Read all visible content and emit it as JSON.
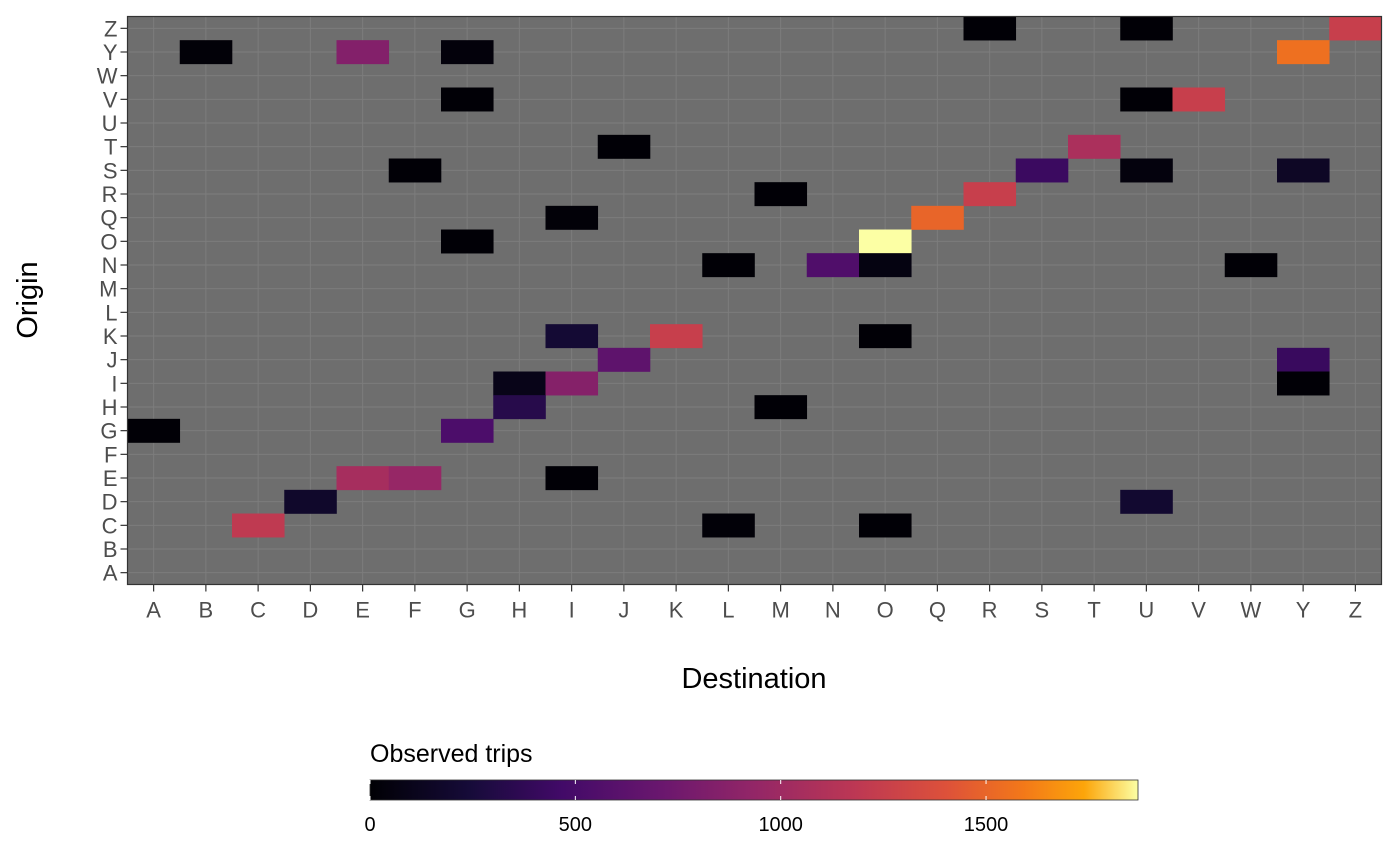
{
  "chart_data": {
    "type": "heatmap",
    "xlabel": "Destination",
    "ylabel": "Origin",
    "x_categories": [
      "A",
      "B",
      "C",
      "D",
      "E",
      "F",
      "G",
      "H",
      "I",
      "J",
      "K",
      "L",
      "M",
      "N",
      "O",
      "Q",
      "R",
      "S",
      "T",
      "U",
      "V",
      "W",
      "Y",
      "Z"
    ],
    "y_categories": [
      "A",
      "B",
      "C",
      "D",
      "E",
      "F",
      "G",
      "H",
      "I",
      "J",
      "K",
      "L",
      "M",
      "N",
      "O",
      "Q",
      "R",
      "S",
      "T",
      "U",
      "V",
      "W",
      "Y",
      "Z"
    ],
    "missing_color": "#6e6e6e",
    "colorscale": "inferno",
    "legend": {
      "title": "Observed trips",
      "position": "bottom",
      "range": [
        0,
        1870
      ],
      "ticks": [
        0,
        500,
        1000,
        1500
      ]
    },
    "cells": [
      {
        "origin": "Z",
        "destination": "R",
        "value": 10
      },
      {
        "origin": "Z",
        "destination": "U",
        "value": 10
      },
      {
        "origin": "Z",
        "destination": "Z",
        "value": 1250
      },
      {
        "origin": "Y",
        "destination": "B",
        "value": 20
      },
      {
        "origin": "Y",
        "destination": "E",
        "value": 850
      },
      {
        "origin": "Y",
        "destination": "G",
        "value": 30
      },
      {
        "origin": "Y",
        "destination": "Y",
        "value": 1550
      },
      {
        "origin": "V",
        "destination": "G",
        "value": 10
      },
      {
        "origin": "V",
        "destination": "U",
        "value": 10
      },
      {
        "origin": "V",
        "destination": "V",
        "value": 1250
      },
      {
        "origin": "T",
        "destination": "J",
        "value": 10
      },
      {
        "origin": "T",
        "destination": "T",
        "value": 1080
      },
      {
        "origin": "S",
        "destination": "F",
        "value": 10
      },
      {
        "origin": "S",
        "destination": "S",
        "value": 430
      },
      {
        "origin": "S",
        "destination": "U",
        "value": 40
      },
      {
        "origin": "S",
        "destination": "Y",
        "value": 150
      },
      {
        "origin": "R",
        "destination": "M",
        "value": 10
      },
      {
        "origin": "R",
        "destination": "R",
        "value": 1250
      },
      {
        "origin": "Q",
        "destination": "I",
        "value": 20
      },
      {
        "origin": "Q",
        "destination": "Q",
        "value": 1500
      },
      {
        "origin": "O",
        "destination": "G",
        "value": 10
      },
      {
        "origin": "O",
        "destination": "O",
        "value": 1870
      },
      {
        "origin": "N",
        "destination": "L",
        "value": 10
      },
      {
        "origin": "N",
        "destination": "N",
        "value": 550
      },
      {
        "origin": "N",
        "destination": "O",
        "value": 60
      },
      {
        "origin": "N",
        "destination": "W",
        "value": 10
      },
      {
        "origin": "K",
        "destination": "I",
        "value": 220
      },
      {
        "origin": "K",
        "destination": "K",
        "value": 1250
      },
      {
        "origin": "K",
        "destination": "O",
        "value": 10
      },
      {
        "origin": "J",
        "destination": "J",
        "value": 640
      },
      {
        "origin": "J",
        "destination": "Y",
        "value": 420
      },
      {
        "origin": "I",
        "destination": "H",
        "value": 90
      },
      {
        "origin": "I",
        "destination": "I",
        "value": 860
      },
      {
        "origin": "I",
        "destination": "Y",
        "value": 10
      },
      {
        "origin": "H",
        "destination": "H",
        "value": 330
      },
      {
        "origin": "H",
        "destination": "M",
        "value": 10
      },
      {
        "origin": "G",
        "destination": "A",
        "value": 10
      },
      {
        "origin": "G",
        "destination": "G",
        "value": 530
      },
      {
        "origin": "E",
        "destination": "E",
        "value": 1050
      },
      {
        "origin": "E",
        "destination": "F",
        "value": 950
      },
      {
        "origin": "E",
        "destination": "I",
        "value": 10
      },
      {
        "origin": "D",
        "destination": "D",
        "value": 180
      },
      {
        "origin": "D",
        "destination": "U",
        "value": 200
      },
      {
        "origin": "C",
        "destination": "C",
        "value": 1200
      },
      {
        "origin": "C",
        "destination": "L",
        "value": 20
      },
      {
        "origin": "C",
        "destination": "O",
        "value": 10
      }
    ]
  }
}
